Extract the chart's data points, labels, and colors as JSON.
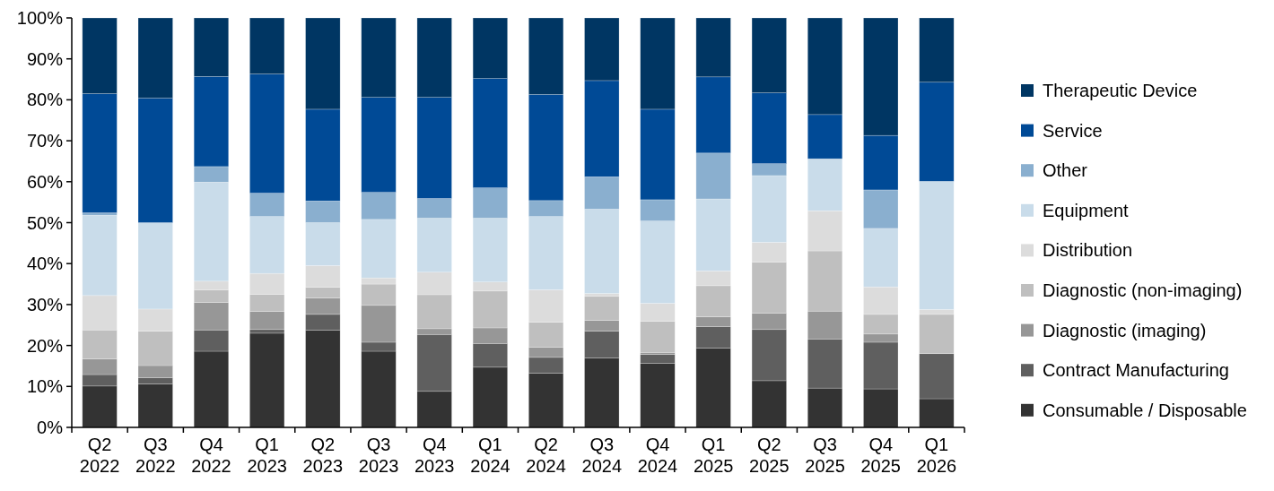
{
  "chart_data": {
    "type": "bar",
    "stacked": true,
    "legend": "right",
    "grid": false,
    "categories": [
      "Q2 2022",
      "Q3 2022",
      "Q4 2022",
      "Q1 2023",
      "Q2 2023",
      "Q3 2023",
      "Q4 2023",
      "Q1 2024",
      "Q2 2024",
      "Q3 2024",
      "Q4 2024",
      "Q1 2025",
      "Q2 2025",
      "Q3 2025",
      "Q4 2025",
      "Q1 2026"
    ],
    "ylim": [
      0,
      100
    ],
    "yticks": [
      {
        "value": 0,
        "label": "0%"
      },
      {
        "value": 10,
        "label": "10%"
      },
      {
        "value": 20,
        "label": "20%"
      },
      {
        "value": 30,
        "label": "30%"
      },
      {
        "value": 40,
        "label": "40%"
      },
      {
        "value": 50,
        "label": "50%"
      },
      {
        "value": 60,
        "label": "60%"
      },
      {
        "value": 70,
        "label": "70%"
      },
      {
        "value": 80,
        "label": "80%"
      },
      {
        "value": 90,
        "label": "90%"
      },
      {
        "value": 100,
        "label": "100%"
      }
    ],
    "series": [
      {
        "name": "Consumable / Disposable",
        "color": "#333333",
        "values": [
          10.1,
          10.6,
          18.6,
          23.0,
          23.7,
          18.6,
          8.8,
          14.7,
          13.2,
          17.0,
          15.6,
          19.4,
          11.4,
          9.6,
          9.4,
          7.0
        ]
      },
      {
        "name": "Contract Manufacturing",
        "color": "#5f5f5f",
        "values": [
          2.8,
          1.5,
          5.2,
          0.9,
          3.9,
          2.2,
          13.9,
          5.8,
          3.9,
          6.5,
          2.2,
          5.2,
          12.5,
          12.0,
          11.4,
          11.0
        ]
      },
      {
        "name": "Diagnostic (imaging)",
        "color": "#979797",
        "values": [
          3.8,
          3.0,
          6.7,
          4.4,
          4.0,
          9.0,
          1.4,
          3.8,
          2.5,
          2.6,
          0.5,
          2.4,
          4.0,
          6.8,
          2.0,
          0
        ]
      },
      {
        "name": "Diagnostic (non-imaging)",
        "color": "#bfbfbf",
        "values": [
          7.1,
          8.4,
          3.1,
          4.2,
          2.6,
          5.2,
          8.3,
          9.0,
          6.1,
          5.9,
          7.6,
          7.6,
          12.5,
          14.7,
          4.8,
          9.6
        ]
      },
      {
        "name": "Distribution",
        "color": "#dcdcdc",
        "values": [
          8.4,
          5.4,
          2.1,
          5.1,
          5.3,
          1.5,
          5.5,
          2.2,
          7.9,
          0.7,
          4.4,
          3.6,
          4.8,
          9.8,
          6.7,
          1.2
        ]
      },
      {
        "name": "Equipment",
        "color": "#c9dcea",
        "values": [
          19.6,
          21.1,
          24.2,
          13.9,
          10.5,
          14.3,
          13.2,
          15.6,
          17.9,
          20.6,
          20.1,
          17.6,
          16.3,
          12.7,
          14.3,
          31.3
        ]
      },
      {
        "name": "Other",
        "color": "#8aafcf",
        "values": [
          0.6,
          0,
          3.8,
          5.7,
          5.3,
          6.6,
          4.8,
          7.4,
          3.9,
          7.9,
          5.2,
          11.2,
          2.9,
          0,
          9.4,
          0
        ]
      },
      {
        "name": "Service",
        "color": "#004a96",
        "values": [
          29.1,
          30.4,
          22.0,
          29.1,
          22.4,
          23.2,
          24.7,
          26.7,
          25.9,
          23.5,
          22.1,
          18.6,
          17.3,
          10.8,
          13.3,
          24.2
        ]
      },
      {
        "name": "Therapeutic Device",
        "color": "#003663",
        "values": [
          18.5,
          19.6,
          14.3,
          13.7,
          22.3,
          19.4,
          19.4,
          14.8,
          18.7,
          15.3,
          22.3,
          14.4,
          18.3,
          23.6,
          28.7,
          15.7
        ]
      }
    ]
  }
}
